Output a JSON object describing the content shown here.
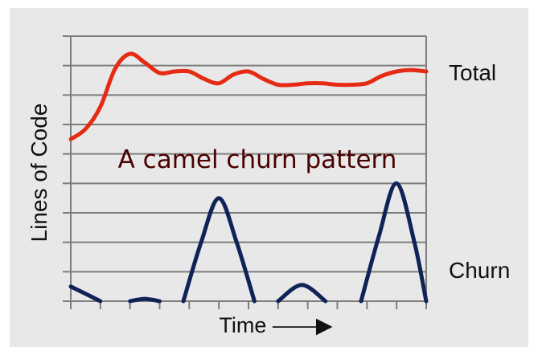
{
  "chart_data": {
    "type": "line",
    "title": "",
    "annotation": "A camel churn pattern",
    "xlabel": "Time ——▶",
    "ylabel": "Lines of Code",
    "xlim": [
      0,
      12
    ],
    "ylim": [
      0,
      9
    ],
    "grid": true,
    "x_tick_count": 13,
    "y_tick_count": 10,
    "series": [
      {
        "name": "Total",
        "color": "#e52b14",
        "x": [
          0,
          0.5,
          1,
          1.5,
          2,
          2.5,
          3,
          3.5,
          4,
          4.5,
          5,
          5.5,
          6,
          6.5,
          7,
          7.5,
          8,
          8.5,
          9,
          9.5,
          10,
          10.5,
          11,
          11.5,
          12
        ],
        "y": [
          5.5,
          5.85,
          6.6,
          7.9,
          8.4,
          8.1,
          7.75,
          7.8,
          7.8,
          7.55,
          7.4,
          7.7,
          7.8,
          7.55,
          7.35,
          7.35,
          7.4,
          7.4,
          7.35,
          7.35,
          7.4,
          7.65,
          7.8,
          7.85,
          7.8
        ]
      },
      {
        "name": "Churn",
        "color": "#0f2356",
        "segments": [
          {
            "x": [
              0,
              0.5,
              1
            ],
            "y": [
              0.5,
              0.25,
              0
            ]
          },
          {
            "x": [
              2,
              2.5,
              3
            ],
            "y": [
              0,
              0.08,
              0
            ]
          },
          {
            "x": [
              3.8,
              4.4,
              5,
              5.6,
              6.2
            ],
            "y": [
              0,
              2.0,
              3.5,
              2.0,
              0
            ]
          },
          {
            "x": [
              7,
              7.8,
              8.6
            ],
            "y": [
              0,
              0.55,
              0
            ]
          },
          {
            "x": [
              9.8,
              10.4,
              11,
              11.6,
              12
            ],
            "y": [
              0,
              2.2,
              4.0,
              2.0,
              0
            ]
          }
        ]
      }
    ]
  }
}
